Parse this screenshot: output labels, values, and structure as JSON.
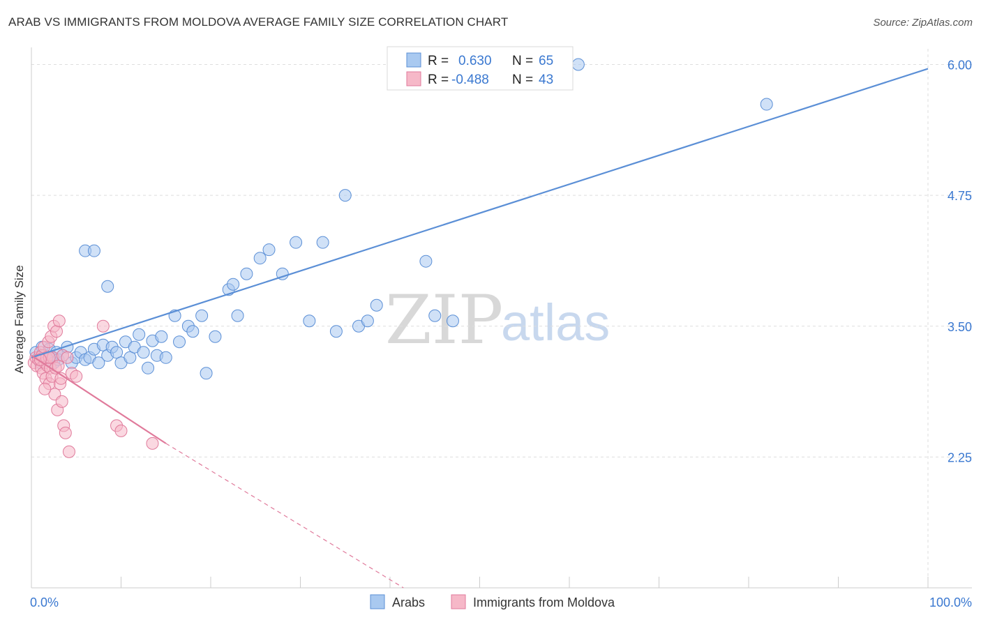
{
  "title": "ARAB VS IMMIGRANTS FROM MOLDOVA AVERAGE FAMILY SIZE CORRELATION CHART",
  "source": "Source: ZipAtlas.com",
  "watermark": {
    "zip": "ZIP",
    "atlas": "atlas"
  },
  "legend": {
    "r_label": "R =",
    "n_label": "N =",
    "rows": [
      {
        "r": "0.630",
        "n": "65",
        "color": "#a9c9f0",
        "stroke": "#5b8fd6"
      },
      {
        "r": "-0.488",
        "n": "43",
        "color": "#f6b8c8",
        "stroke": "#e07a9b"
      }
    ]
  },
  "bottom_legend": [
    {
      "label": "Arabs",
      "color": "#a9c9f0",
      "stroke": "#5b8fd6"
    },
    {
      "label": "Immigrants from Moldova",
      "color": "#f6b8c8",
      "stroke": "#e07a9b"
    }
  ],
  "chart_data": {
    "type": "scatter",
    "ylabel": "Average Family Size",
    "xlim": [
      0,
      100
    ],
    "ylim": [
      1.0,
      6.15
    ],
    "x_tick_labels": [
      "0.0%",
      "100.0%"
    ],
    "y_ticks": [
      2.25,
      3.5,
      4.75,
      6.0
    ],
    "y_tick_labels": [
      "2.25",
      "3.50",
      "4.75",
      "6.00"
    ],
    "grid": true,
    "series": [
      {
        "name": "Arabs",
        "color": "#5b8fd6",
        "fill": "#a9c9f0",
        "trend": {
          "x": [
            0,
            100
          ],
          "y": [
            3.2,
            5.96
          ]
        },
        "points": [
          [
            0.5,
            3.25
          ],
          [
            0.8,
            3.2
          ],
          [
            1.0,
            3.15
          ],
          [
            1.2,
            3.3
          ],
          [
            1.5,
            3.22
          ],
          [
            1.8,
            3.18
          ],
          [
            2.0,
            3.28
          ],
          [
            2.2,
            3.2
          ],
          [
            2.5,
            3.15
          ],
          [
            2.8,
            3.25
          ],
          [
            3.0,
            3.18
          ],
          [
            3.5,
            3.22
          ],
          [
            4.0,
            3.3
          ],
          [
            4.5,
            3.15
          ],
          [
            5.0,
            3.2
          ],
          [
            5.5,
            3.25
          ],
          [
            6.0,
            3.18
          ],
          [
            6.5,
            3.2
          ],
          [
            7.0,
            3.28
          ],
          [
            7.5,
            3.15
          ],
          [
            8.0,
            3.32
          ],
          [
            8.5,
            3.22
          ],
          [
            9.0,
            3.3
          ],
          [
            9.5,
            3.25
          ],
          [
            10.0,
            3.15
          ],
          [
            10.5,
            3.35
          ],
          [
            11.0,
            3.2
          ],
          [
            11.5,
            3.3
          ],
          [
            12.0,
            3.42
          ],
          [
            12.5,
            3.25
          ],
          [
            13.0,
            3.1
          ],
          [
            13.5,
            3.36
          ],
          [
            14.0,
            3.22
          ],
          [
            14.5,
            3.4
          ],
          [
            15.0,
            3.2
          ],
          [
            16.0,
            3.6
          ],
          [
            16.5,
            3.35
          ],
          [
            17.5,
            3.5
          ],
          [
            18.0,
            3.45
          ],
          [
            19.0,
            3.6
          ],
          [
            19.5,
            3.05
          ],
          [
            20.5,
            3.4
          ],
          [
            22.0,
            3.85
          ],
          [
            22.5,
            3.9
          ],
          [
            23.0,
            3.6
          ],
          [
            24.0,
            4.0
          ],
          [
            25.5,
            4.15
          ],
          [
            26.5,
            4.23
          ],
          [
            28.0,
            4.0
          ],
          [
            29.5,
            4.3
          ],
          [
            31.0,
            3.55
          ],
          [
            32.5,
            4.3
          ],
          [
            34.0,
            3.45
          ],
          [
            35.0,
            4.75
          ],
          [
            36.5,
            3.5
          ],
          [
            37.5,
            3.55
          ],
          [
            38.5,
            3.7
          ],
          [
            44.0,
            4.12
          ],
          [
            45.0,
            3.6
          ],
          [
            47.0,
            3.55
          ],
          [
            61.0,
            6.0
          ],
          [
            82.0,
            5.62
          ],
          [
            6.0,
            4.22
          ],
          [
            7.0,
            4.22
          ],
          [
            8.5,
            3.88
          ]
        ]
      },
      {
        "name": "Immigrants from Moldova",
        "color": "#e07a9b",
        "fill": "#f6b8c8",
        "trend": {
          "x": [
            0,
            15
          ],
          "y": [
            3.22,
            2.38
          ]
        },
        "trend_ext": {
          "x": [
            15,
            41.5
          ],
          "y": [
            2.38,
            1.0
          ]
        },
        "points": [
          [
            0.3,
            3.15
          ],
          [
            0.5,
            3.2
          ],
          [
            0.6,
            3.12
          ],
          [
            0.8,
            3.18
          ],
          [
            1.0,
            3.25
          ],
          [
            1.1,
            3.1
          ],
          [
            1.2,
            3.22
          ],
          [
            1.3,
            3.05
          ],
          [
            1.4,
            3.3
          ],
          [
            1.5,
            3.15
          ],
          [
            1.6,
            3.0
          ],
          [
            1.7,
            3.2
          ],
          [
            1.8,
            3.12
          ],
          [
            1.9,
            3.35
          ],
          [
            2.0,
            2.95
          ],
          [
            2.1,
            3.1
          ],
          [
            2.2,
            3.4
          ],
          [
            2.3,
            3.02
          ],
          [
            2.4,
            3.2
          ],
          [
            2.5,
            3.5
          ],
          [
            2.6,
            2.85
          ],
          [
            2.7,
            3.1
          ],
          [
            2.8,
            3.45
          ],
          [
            2.9,
            2.7
          ],
          [
            3.0,
            3.12
          ],
          [
            3.1,
            3.55
          ],
          [
            3.2,
            2.95
          ],
          [
            3.3,
            3.0
          ],
          [
            3.4,
            2.78
          ],
          [
            3.5,
            3.22
          ],
          [
            3.6,
            2.55
          ],
          [
            3.8,
            2.48
          ],
          [
            4.0,
            3.2
          ],
          [
            4.2,
            2.3
          ],
          [
            4.5,
            3.05
          ],
          [
            5.0,
            3.02
          ],
          [
            2.0,
            3.2
          ],
          [
            1.0,
            3.18
          ],
          [
            8.0,
            3.5
          ],
          [
            9.5,
            2.55
          ],
          [
            10.0,
            2.5
          ],
          [
            13.5,
            2.38
          ],
          [
            1.5,
            2.9
          ]
        ]
      }
    ]
  }
}
